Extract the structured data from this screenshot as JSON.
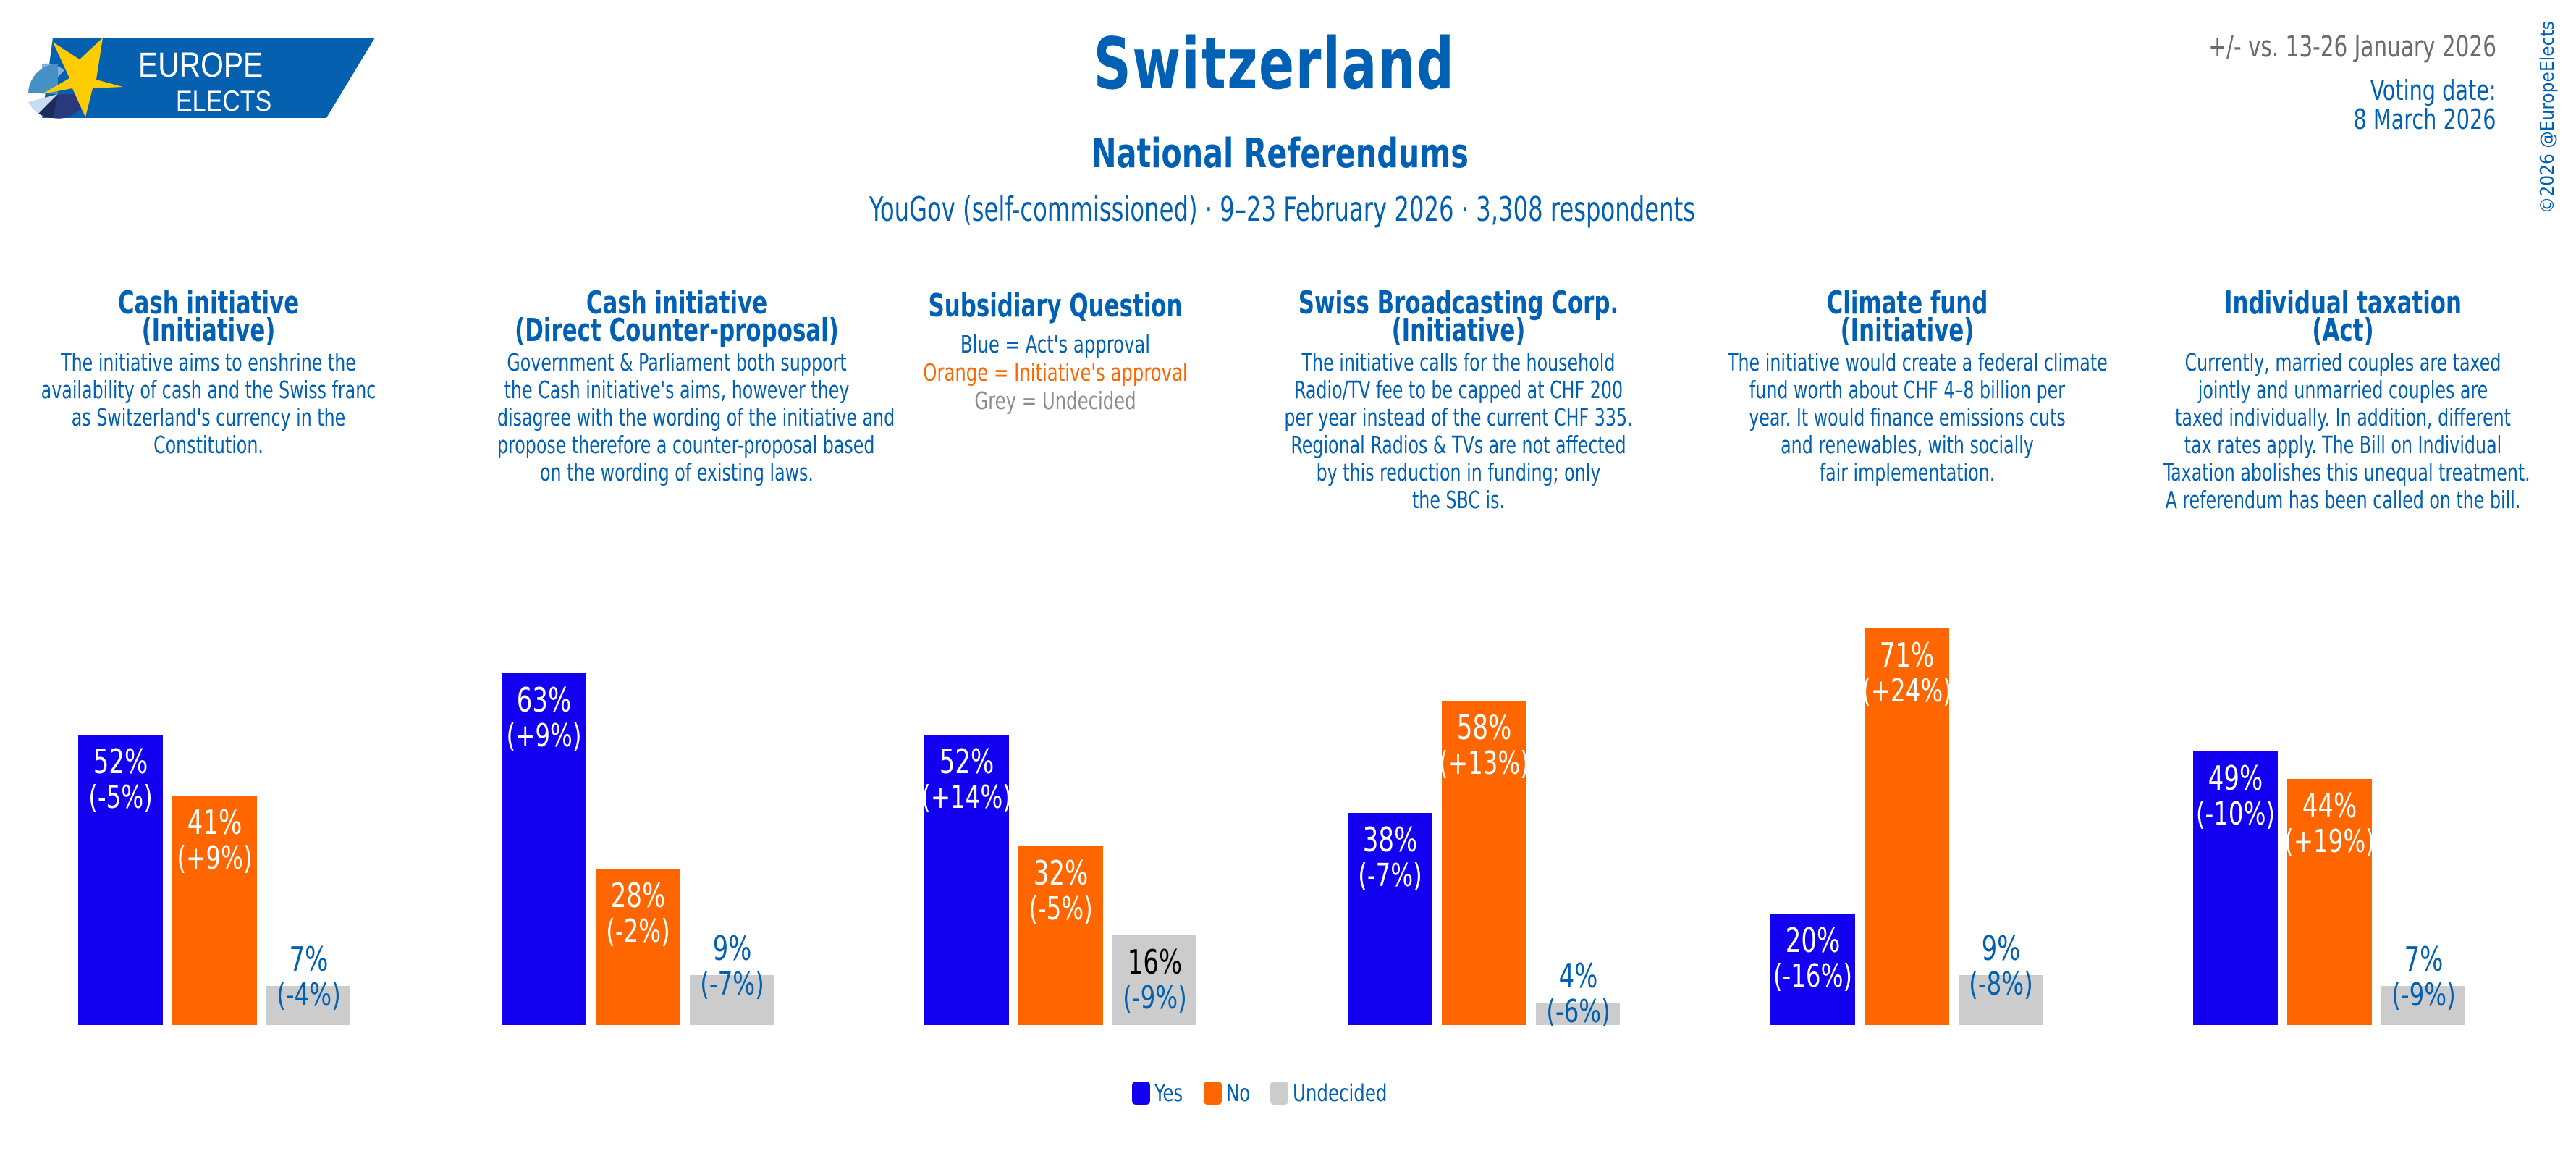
{
  "logo": {
    "line1": "EUROPE",
    "line2": "ELECTS"
  },
  "header": {
    "title": "Switzerland",
    "subtitle": "National Referendums",
    "poll_info": "YouGov (self-commissioned) · 9–23 February 2026 · 3,308 respondents",
    "comparison": "+/- vs. 13-26 January 2026",
    "voting_date_label": "Voting date:",
    "voting_date": "8 March 2026",
    "copyright": "©2026 @EuropeElects"
  },
  "colors": {
    "yes": "#1400F0",
    "no": "#FF6600",
    "undecided": "#CCCCCC",
    "text": "#0060B4"
  },
  "columns": [
    {
      "title": [
        "Cash initiative",
        "(Initiative)"
      ],
      "description": [
        "The initiative aims to enshrine the",
        "availability of cash and the Swiss franc",
        "as Switzerland's currency in the",
        "Constitution."
      ]
    },
    {
      "title": [
        "Cash initiative",
        "(Direct Counter-proposal)"
      ],
      "description": [
        "Government & Parliament both support",
        "the Cash initiative's aims, however they",
        "disagree with the wording of the initiative and",
        "propose therefore a counter-proposal based",
        "on the wording of existing laws."
      ]
    },
    {
      "title": [
        "Subsidiary Question"
      ],
      "key": [
        {
          "text": "Blue = Act's approval",
          "color": "#0060B4"
        },
        {
          "text": "Orange = Initiative's approval",
          "color": "#FF6600"
        },
        {
          "text": "Grey = Undecided",
          "color": "#8C8C8C"
        }
      ]
    },
    {
      "title": [
        "Swiss Broadcasting Corp.",
        "(Initiative)"
      ],
      "description": [
        "The initiative calls for the household",
        "Radio/TV fee to be capped at CHF 200",
        "per year instead of the current CHF 335.",
        "Regional Radios & TVs are not affected",
        "by this reduction in funding; only",
        "the SBC is."
      ]
    },
    {
      "title": [
        "Climate fund",
        "(Initiative)"
      ],
      "description": [
        "The initiative would create a federal climate",
        "fund worth about CHF 4–8 billion per",
        "year. It would finance emissions cuts",
        "and renewables, with socially",
        "fair implementation."
      ]
    },
    {
      "title": [
        "Individual taxation",
        "(Act)"
      ],
      "description": [
        "Currently, married couples are taxed",
        "jointly and unmarried couples are",
        "taxed individually. In addition, different",
        "tax rates apply. The Bill on Individual",
        "Taxation abolishes this unequal treatment.",
        "A referendum has been called on the bill."
      ]
    }
  ],
  "legend": [
    {
      "label": "Yes",
      "color": "#1400F0"
    },
    {
      "label": "No",
      "color": "#FF6600"
    },
    {
      "label": "Undecided",
      "color": "#CCCCCC"
    }
  ],
  "chart_data": {
    "type": "bar",
    "title": "Switzerland — National Referendums",
    "xlabel": "",
    "ylabel": "",
    "ylim": [
      0,
      100
    ],
    "grid": false,
    "legend_position": "bottom-center",
    "categories": [
      "Cash initiative (Initiative)",
      "Cash initiative (Direct Counter-proposal)",
      "Subsidiary Question",
      "Swiss Broadcasting Corp. (Initiative)",
      "Climate fund (Initiative)",
      "Individual taxation (Act)"
    ],
    "series": [
      {
        "name": "Yes",
        "values": [
          52,
          63,
          52,
          38,
          20,
          49
        ],
        "changes": [
          "-5%",
          "+9%",
          "+14%",
          "-7%",
          "-16%",
          "-10%"
        ]
      },
      {
        "name": "No",
        "values": [
          41,
          28,
          32,
          58,
          71,
          44
        ],
        "changes": [
          "+9%",
          "-2%",
          "-5%",
          "+13%",
          "+24%",
          "+19%"
        ]
      },
      {
        "name": "Undecided",
        "values": [
          7,
          9,
          16,
          4,
          9,
          7
        ],
        "changes": [
          "-4%",
          "-7%",
          "-9%",
          "-6%",
          "-8%",
          "-9%"
        ]
      }
    ]
  }
}
